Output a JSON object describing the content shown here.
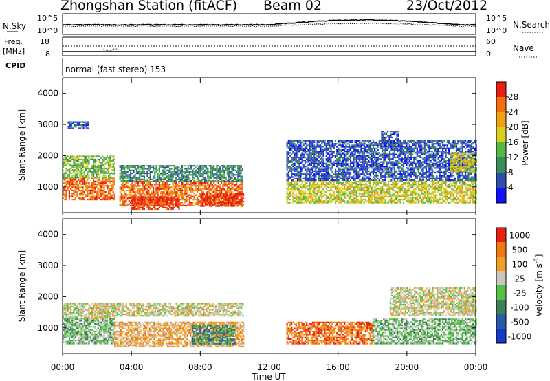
{
  "header": {
    "station": "Zhongshan Station (fitACF)",
    "beam": "Beam 02",
    "date": "23/Oct/2012"
  },
  "summary_panels": {
    "nsky": {
      "label": "N.Sky",
      "ticks": [
        "10^5",
        "10^0"
      ]
    },
    "nsearch": {
      "label": "N.Search",
      "ticks": [
        "10^5",
        "10^0"
      ]
    },
    "freq": {
      "label_top": "Freq.",
      "label_bottom": "[MHz]",
      "ticks": [
        "18",
        "8"
      ]
    },
    "nave": {
      "label": "Nave",
      "ticks": [
        "60",
        "0"
      ]
    },
    "cpid": {
      "label": "CPID",
      "text": "normal (fast stereo) 153"
    }
  },
  "chart_data": [
    {
      "type": "heatmap",
      "name": "power-panel",
      "ylabel": "Slant Range [km]",
      "ylim": [
        180,
        4500
      ],
      "yticks": [
        1000,
        2000,
        3000,
        4000
      ],
      "xticks": [
        "00:00",
        "04:00",
        "08:00",
        "12:00",
        "16:00",
        "20:00",
        "00:00"
      ],
      "xlim_hours": [
        0,
        24
      ],
      "colorbar": {
        "label": "Power [dB]",
        "range": [
          0,
          32
        ],
        "tick_labels": [
          "4",
          "8",
          "12",
          "16",
          "20",
          "24",
          "28"
        ],
        "colors": [
          "#1010ff",
          "#2f4faa",
          "#3d8a5c",
          "#55b844",
          "#d8d020",
          "#f0a018",
          "#f07010",
          "#e82010"
        ]
      },
      "echo_regions": [
        {
          "t0": 0.0,
          "t1": 3.0,
          "r0": 600,
          "r1": 1300,
          "level": 6
        },
        {
          "t0": 0.0,
          "t1": 3.0,
          "r0": 1300,
          "r1": 2000,
          "level": 3
        },
        {
          "t0": 0.3,
          "t1": 1.5,
          "r0": 2900,
          "r1": 3100,
          "level": 1
        },
        {
          "t0": 3.3,
          "t1": 10.5,
          "r0": 400,
          "r1": 1200,
          "level": 6
        },
        {
          "t0": 4.0,
          "t1": 6.8,
          "r0": 300,
          "r1": 700,
          "level": 7
        },
        {
          "t0": 3.3,
          "t1": 10.5,
          "r0": 1200,
          "r1": 1700,
          "level": 2
        },
        {
          "t0": 8.0,
          "t1": 10.5,
          "r0": 400,
          "r1": 800,
          "level": 7
        },
        {
          "t0": 13.0,
          "t1": 24.0,
          "r0": 500,
          "r1": 1200,
          "level": 4
        },
        {
          "t0": 13.0,
          "t1": 24.0,
          "r0": 1200,
          "r1": 2500,
          "level": 1
        },
        {
          "t0": 18.5,
          "t1": 19.5,
          "r0": 2300,
          "r1": 2800,
          "level": 1
        },
        {
          "t0": 22.5,
          "t1": 24.0,
          "r0": 1500,
          "r1": 2100,
          "level": 4
        }
      ]
    },
    {
      "type": "heatmap",
      "name": "velocity-panel",
      "ylabel": "Slant Range [km]",
      "ylim": [
        180,
        4500
      ],
      "yticks": [
        1000,
        2000,
        3000,
        4000
      ],
      "xticks": [
        "00:00",
        "04:00",
        "08:00",
        "12:00",
        "16:00",
        "20:00",
        "00:00"
      ],
      "xlim_hours": [
        0,
        24
      ],
      "xlabel": "Time UT",
      "colorbar": {
        "label": "Velocity [m s^-1]",
        "tick_labels": [
          "1000",
          "500",
          "100",
          "25",
          "-25",
          "-100",
          "-500",
          "-1000"
        ],
        "colors": [
          "#1838c8",
          "#2c58a8",
          "#3e7e58",
          "#58c048",
          "#c8c8c0",
          "#f0a028",
          "#f07810",
          "#e82010"
        ]
      },
      "echo_regions": [
        {
          "t0": 0.0,
          "t1": 3.0,
          "r0": 1300,
          "r1": 1800,
          "level": 4
        },
        {
          "t0": 0.0,
          "t1": 3.0,
          "r0": 500,
          "r1": 1300,
          "level": 3
        },
        {
          "t0": 2.0,
          "t1": 10.5,
          "r0": 1400,
          "r1": 1800,
          "level": 4
        },
        {
          "t0": 3.0,
          "t1": 10.5,
          "r0": 400,
          "r1": 1200,
          "level": 5
        },
        {
          "t0": 7.5,
          "t1": 10.0,
          "r0": 500,
          "r1": 1100,
          "level": 2
        },
        {
          "t0": 13.0,
          "t1": 18.0,
          "r0": 500,
          "r1": 1200,
          "level": 6
        },
        {
          "t0": 18.0,
          "t1": 24.0,
          "r0": 500,
          "r1": 1300,
          "level": 3
        },
        {
          "t0": 19.0,
          "t1": 24.0,
          "r0": 1400,
          "r1": 2300,
          "level": 4
        },
        {
          "t0": 23.0,
          "t1": 24.0,
          "r0": 1500,
          "r1": 1900,
          "level": 4
        }
      ]
    }
  ]
}
